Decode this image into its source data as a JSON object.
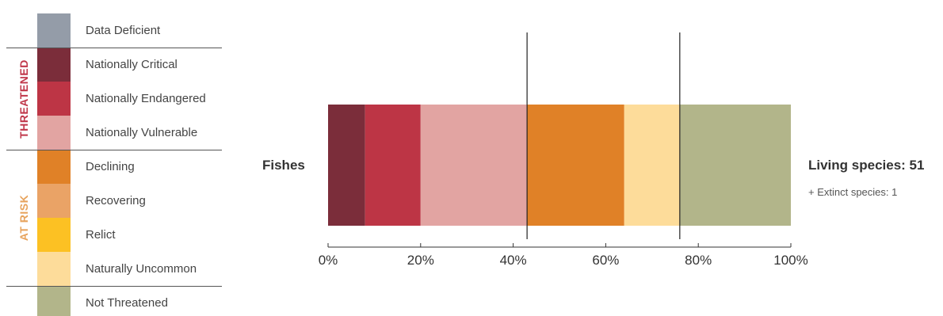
{
  "legend": {
    "groups": {
      "threatened": {
        "label": "THREATENED",
        "color": "#c0374a"
      },
      "at_risk": {
        "label": "AT RISK",
        "color": "#e7a35c"
      }
    },
    "items": [
      {
        "label": "Data Deficient",
        "color": "#949ca8"
      },
      {
        "label": "Nationally Critical",
        "color": "#7b2d3a"
      },
      {
        "label": "Nationally Endangered",
        "color": "#bd3545"
      },
      {
        "label": "Nationally Vulnerable",
        "color": "#e2a4a2"
      },
      {
        "label": "Declining",
        "color": "#e08127"
      },
      {
        "label": "Recovering",
        "color": "#eaa366"
      },
      {
        "label": "Relict",
        "color": "#fcc123"
      },
      {
        "label": "Naturally Uncommon",
        "color": "#fddc9a"
      },
      {
        "label": "Not Threatened",
        "color": "#b2b58a"
      }
    ]
  },
  "chart_data": {
    "type": "bar",
    "orientation": "horizontal",
    "stacked": "percent",
    "categories": [
      "Fishes"
    ],
    "series": [
      {
        "name": "Nationally Critical",
        "values": [
          8
        ],
        "color": "#7b2d3a"
      },
      {
        "name": "Nationally Endangered",
        "values": [
          12
        ],
        "color": "#bd3545"
      },
      {
        "name": "Nationally Vulnerable",
        "values": [
          23
        ],
        "color": "#e2a4a2"
      },
      {
        "name": "Declining",
        "values": [
          21
        ],
        "color": "#e08127"
      },
      {
        "name": "Naturally Uncommon",
        "values": [
          12
        ],
        "color": "#fddc9a"
      },
      {
        "name": "Not Threatened",
        "values": [
          24
        ],
        "color": "#b2b58a"
      }
    ],
    "reference_lines": [
      43,
      76
    ],
    "x_ticks": [
      "0%",
      "20%",
      "40%",
      "60%",
      "80%",
      "100%"
    ],
    "xlim": [
      0,
      100
    ],
    "living_species_text": "Living species: 51",
    "extinct_species_text": "+ Extinct species: 1"
  }
}
